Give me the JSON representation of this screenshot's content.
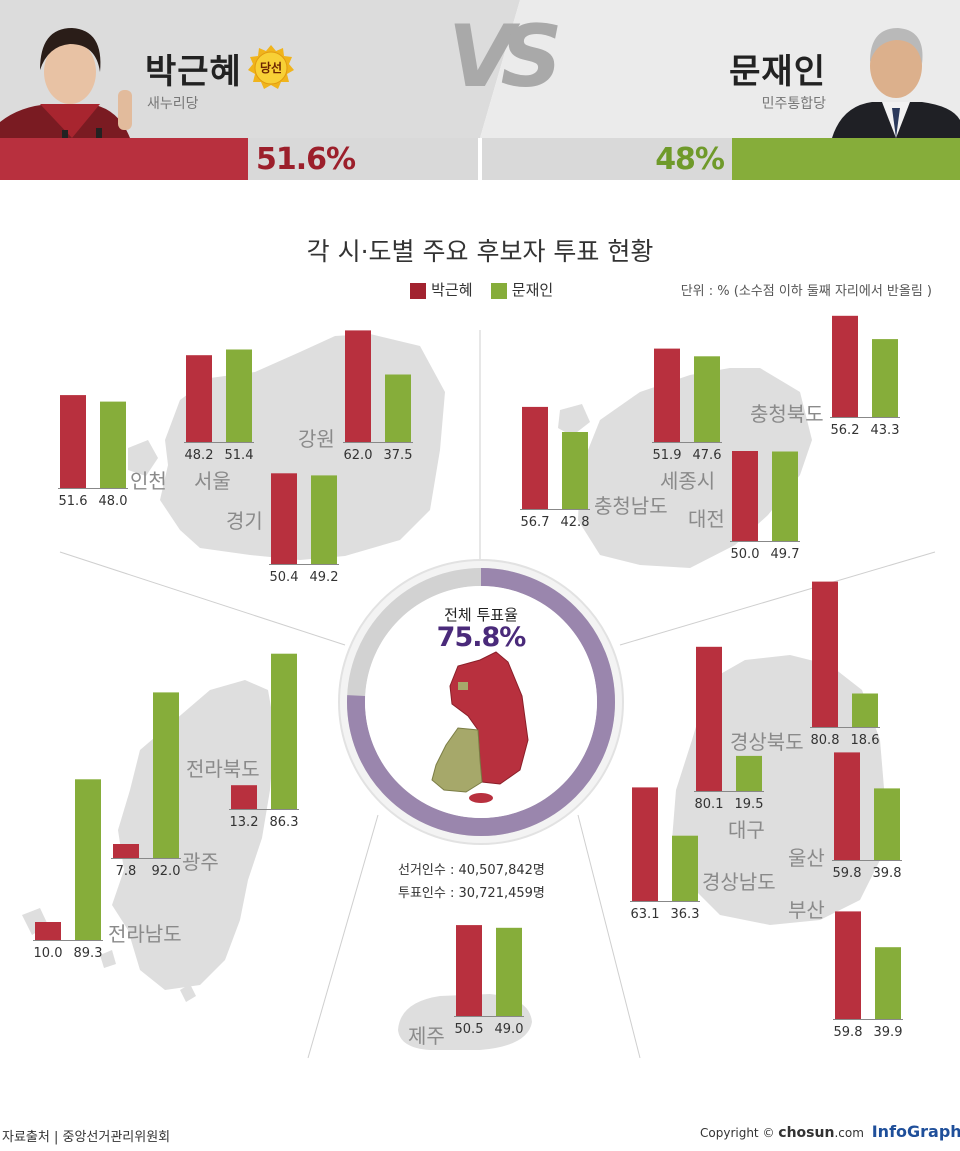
{
  "header": {
    "left": {
      "name": "박근혜",
      "party": "새누리당",
      "badge": "당선",
      "percent_label": "51.6%",
      "percent": 51.6
    },
    "right": {
      "name": "문재인",
      "party": "민주통합당",
      "percent_label": "48%",
      "percent": 48
    },
    "vs_label": "VS"
  },
  "legend": {
    "a": "박근혜",
    "b": "문재인"
  },
  "unit_note": "단위 : % (소수점 이하 둘째 자리에서 반올림 )",
  "colors": {
    "park": "#b8303e",
    "moon": "#86ad3a",
    "turnout": "#9a86ad",
    "map": "#dedede",
    "park_dark": "#a2222f"
  },
  "center": {
    "title": "전체 투표율",
    "turnout_label": "75.8%",
    "turnout": 75.8,
    "electors": "선거인수 : 40,507,842명",
    "voters": "투표인수 : 30,721,459명"
  },
  "chart_data": {
    "type": "bar",
    "title": "각 시·도별 주요 후보자 투표 현황",
    "series_names": [
      "박근혜",
      "문재인"
    ],
    "categories": [
      "인천",
      "서울",
      "강원",
      "경기",
      "충청남도",
      "세종시",
      "충청북도",
      "대전",
      "전라북도",
      "광주",
      "전라남도",
      "경상북도",
      "대구",
      "경상남도",
      "울산",
      "부산",
      "제주"
    ],
    "series": [
      {
        "name": "박근혜",
        "values": [
          51.6,
          48.2,
          62.0,
          50.4,
          56.7,
          51.9,
          56.2,
          50.0,
          13.2,
          7.8,
          10.0,
          80.8,
          80.1,
          63.1,
          59.8,
          59.8,
          50.5
        ]
      },
      {
        "name": "문재인",
        "values": [
          48.0,
          51.4,
          37.5,
          49.2,
          42.8,
          47.6,
          43.3,
          49.7,
          86.3,
          92.0,
          89.3,
          18.6,
          19.5,
          36.3,
          39.8,
          39.9,
          49.0
        ]
      }
    ],
    "value_labels": {
      "park": [
        "51.6",
        "48.2",
        "62.0",
        "50.4",
        "56.7",
        "51.9",
        "56.2",
        "50.0",
        "13.2",
        "7.8",
        "10.0",
        "80.8",
        "80.1",
        "63.1",
        "59.8",
        "59.8",
        "50.5"
      ],
      "moon": [
        "48.0",
        "51.4",
        "37.5",
        "49.2",
        "42.8",
        "47.6",
        "43.3",
        "49.7",
        "86.3",
        "92.0",
        "89.3",
        "18.6",
        "19.5",
        "36.3",
        "39.8",
        "39.9",
        "49.0"
      ]
    }
  },
  "footer": {
    "source": "자료출처 | 중앙선거관리위원회",
    "copyright_prefix": "Copyright ©",
    "copyright_brand": "chosun",
    "copyright_suffix": ".com",
    "infographics": "InfoGraphics"
  }
}
